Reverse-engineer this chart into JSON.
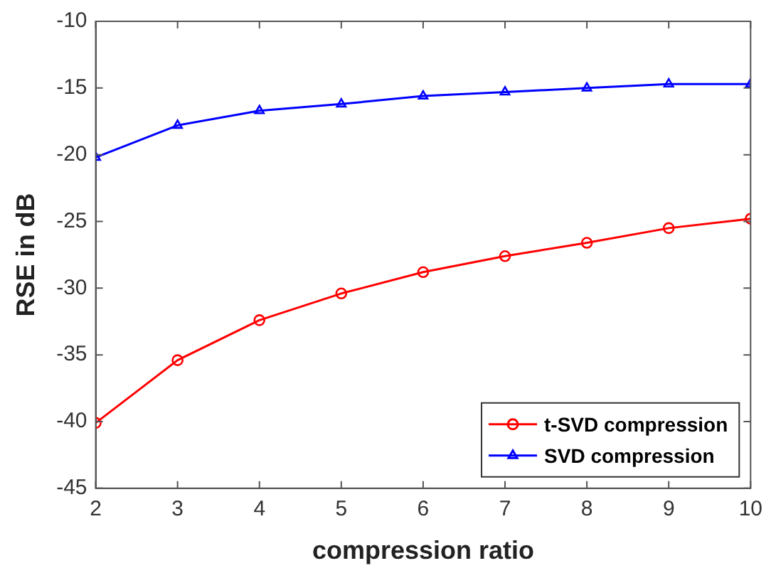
{
  "chart_data": {
    "type": "line",
    "xlabel": "compression ratio",
    "ylabel": "RSE in dB",
    "x": [
      2,
      3,
      4,
      5,
      6,
      7,
      8,
      9,
      10
    ],
    "series": [
      {
        "name": "t-SVD compression",
        "color": "#ff0000",
        "marker": "circle",
        "values": [
          -40.1,
          -35.4,
          -32.4,
          -30.4,
          -28.8,
          -27.6,
          -26.6,
          -25.5,
          -24.8
        ]
      },
      {
        "name": "SVD compression",
        "color": "#0000ff",
        "marker": "triangle",
        "values": [
          -20.2,
          -17.8,
          -16.7,
          -16.2,
          -15.6,
          -15.3,
          -15.0,
          -14.7,
          -14.7
        ]
      }
    ],
    "xlim": [
      2,
      10
    ],
    "xticks": [
      2,
      3,
      4,
      5,
      6,
      7,
      8,
      9,
      10
    ],
    "ylim": [
      -45,
      -10
    ],
    "yticks": [
      -45,
      -40,
      -35,
      -30,
      -25,
      -20,
      -15,
      -10
    ],
    "grid": false,
    "legend": "bottom right",
    "line_style": "solid"
  }
}
